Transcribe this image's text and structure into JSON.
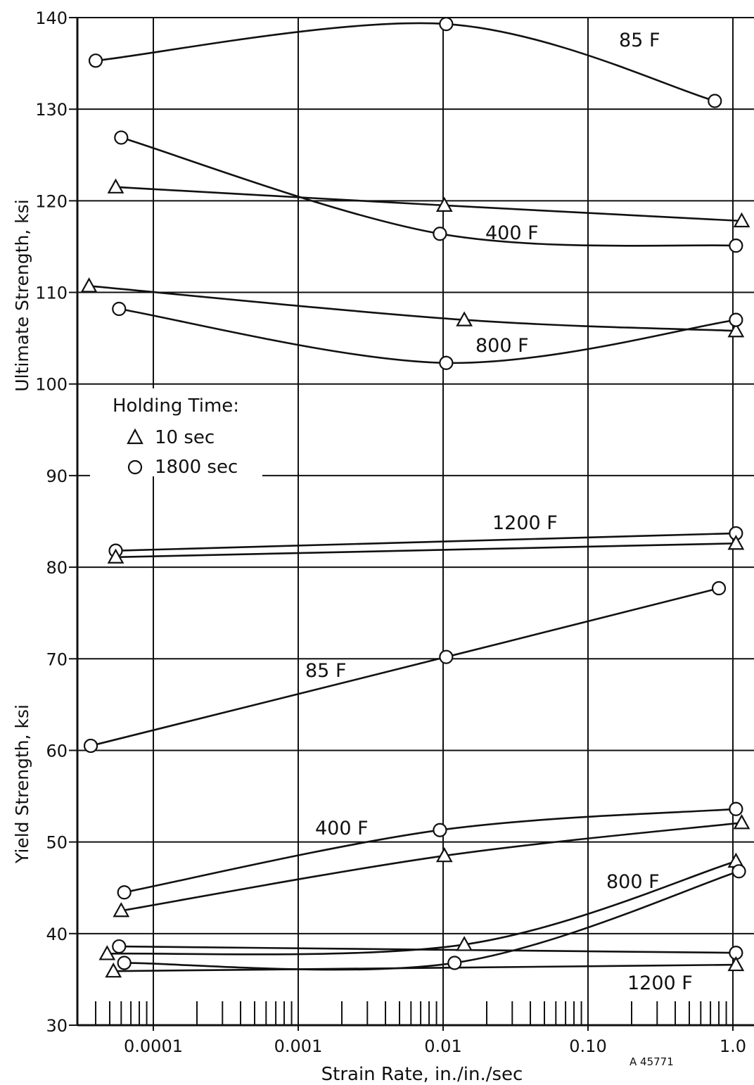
{
  "chart_data": {
    "type": "line",
    "xlabel": "Strain Rate, in./in./sec",
    "x_scale": "log",
    "xlim": [
      3e-05,
      1.2
    ],
    "x_ticks": [
      0.0001,
      0.001,
      0.01,
      0.1,
      1.0
    ],
    "x_tick_labels": [
      "0.0001",
      "0.001",
      "0.01",
      "0.10",
      "1.0"
    ],
    "y_ticks": [
      30,
      40,
      50,
      60,
      70,
      80,
      90,
      100,
      110,
      120,
      130,
      140
    ],
    "y_tick_labels": [
      "30",
      "40",
      "50",
      "60",
      "70",
      "80",
      "90",
      "100",
      "110",
      "120",
      "130",
      "140"
    ],
    "ylim": [
      30,
      140
    ],
    "ylabel_upper": "Ultimate Strength, ksi",
    "ylabel_lower": "Yield Strength, ksi",
    "grid": true,
    "legend": {
      "title": "Holding Time:",
      "entries": [
        {
          "marker": "triangle",
          "label": "10 sec"
        },
        {
          "marker": "circle",
          "label": "1800 sec"
        }
      ],
      "placement": "upper-left of lower half"
    },
    "reference_code": "A 45771",
    "series": [
      {
        "property": "ultimate",
        "temp": "85 F",
        "marker": "circle",
        "x": [
          4e-05,
          0.0105,
          0.75
        ],
        "y": [
          135.3,
          139.3,
          130.9
        ]
      },
      {
        "property": "ultimate",
        "temp": "400 F",
        "marker": "circle",
        "x": [
          6e-05,
          0.0095,
          1.05
        ],
        "y": [
          126.9,
          116.4,
          115.1
        ]
      },
      {
        "property": "ultimate",
        "temp": "400 F",
        "marker": "triangle",
        "x": [
          5.5e-05,
          0.0102,
          1.15
        ],
        "y": [
          121.5,
          119.5,
          117.8
        ]
      },
      {
        "property": "ultimate",
        "temp": "800 F",
        "marker": "triangle",
        "x": [
          3.6e-05,
          0.014,
          1.05
        ],
        "y": [
          110.7,
          107.0,
          105.8
        ]
      },
      {
        "property": "ultimate",
        "temp": "800 F",
        "marker": "circle",
        "x": [
          5.8e-05,
          0.0105,
          1.05
        ],
        "y": [
          108.2,
          102.3,
          107.0
        ]
      },
      {
        "property": "ultimate",
        "temp": "1200 F",
        "marker": "circle",
        "x": [
          5.5e-05,
          1.05
        ],
        "y": [
          81.8,
          83.7
        ]
      },
      {
        "property": "ultimate",
        "temp": "1200 F",
        "marker": "triangle",
        "x": [
          5.5e-05,
          1.05
        ],
        "y": [
          81.1,
          82.6
        ]
      },
      {
        "property": "yield",
        "temp": "85 F",
        "marker": "circle",
        "x": [
          3.7e-05,
          0.0105,
          0.8
        ],
        "y": [
          60.5,
          70.2,
          77.7
        ]
      },
      {
        "property": "yield",
        "temp": "400 F",
        "marker": "circle",
        "x": [
          6.3e-05,
          0.0095,
          1.05
        ],
        "y": [
          44.5,
          51.3,
          53.6
        ]
      },
      {
        "property": "yield",
        "temp": "400 F",
        "marker": "triangle",
        "x": [
          6e-05,
          0.0102,
          1.15
        ],
        "y": [
          42.5,
          48.5,
          52.1
        ]
      },
      {
        "property": "yield",
        "temp": "800 F",
        "marker": "triangle",
        "x": [
          4.8e-05,
          0.014,
          1.05
        ],
        "y": [
          37.8,
          38.8,
          47.9
        ]
      },
      {
        "property": "yield",
        "temp": "800 F",
        "marker": "circle",
        "x": [
          6.3e-05,
          0.012,
          1.1
        ],
        "y": [
          36.8,
          36.8,
          46.8
        ]
      },
      {
        "property": "yield",
        "temp": "1200 F",
        "marker": "circle",
        "x": [
          5.8e-05,
          1.05
        ],
        "y": [
          38.6,
          37.9
        ]
      },
      {
        "property": "yield",
        "temp": "1200 F",
        "marker": "triangle",
        "x": [
          5.3e-05,
          1.05
        ],
        "y": [
          35.9,
          36.6
        ]
      }
    ],
    "annotations": [
      "85 F",
      "400 F",
      "800 F",
      "1200 F",
      "85 F",
      "400 F",
      "800 F",
      "1200 F"
    ]
  }
}
